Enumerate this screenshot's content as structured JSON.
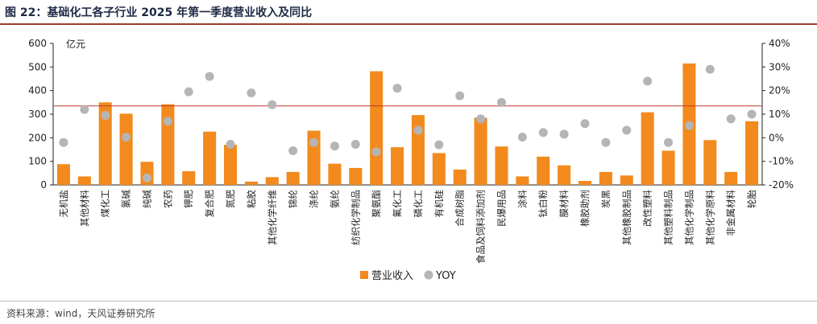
{
  "title": "图 22：基础化工各子行业 2025 年第一季度营业收入及同比",
  "source": "资料来源：wind，天风证券研究所",
  "chart_data": {
    "type": "bar+scatter",
    "unit_label": "亿元",
    "categories": [
      "无机盐",
      "其他材料",
      "煤化工",
      "氯碱",
      "纯碱",
      "农药",
      "钾肥",
      "复合肥",
      "氮肥",
      "粘胶",
      "其他化学纤维",
      "锦纶",
      "涤纶",
      "氨纶",
      "纺织化学制品",
      "聚氨酯",
      "氟化工",
      "磷化工",
      "有机硅",
      "合成树脂",
      "食品及饲料添加剂",
      "民爆用品",
      "涂料",
      "钛白粉",
      "膜材料",
      "橡胶助剂",
      "炭黑",
      "其他橡胶制品",
      "改性塑料",
      "其他塑料制品",
      "其他化学制品",
      "其他化学原料",
      "非金属材料",
      "轮胎"
    ],
    "series": [
      {
        "name": "营业收入",
        "axis": "left",
        "color": "#f28a1e",
        "values": [
          88,
          36,
          350,
          302,
          98,
          342,
          58,
          226,
          170,
          14,
          33,
          55,
          230,
          90,
          72,
          482,
          160,
          296,
          135,
          65,
          285,
          163,
          36,
          120,
          83,
          17,
          55,
          40,
          308,
          145,
          515,
          190,
          55,
          270
        ]
      },
      {
        "name": "YOY",
        "axis": "right",
        "color": "#b5b5b5",
        "values": [
          -2,
          12,
          9.5,
          0.2,
          -17,
          7,
          19.5,
          26,
          -2.8,
          19,
          14,
          -5.5,
          -2,
          -3.5,
          -2.8,
          -6,
          21,
          3.2,
          -3,
          17.8,
          8,
          15,
          0.3,
          2.2,
          1.5,
          6,
          -2,
          3.2,
          24,
          -2,
          5.2,
          29,
          8,
          10
        ]
      }
    ],
    "left_axis": {
      "min": 0,
      "max": 600,
      "ticks": [
        0,
        100,
        200,
        300,
        400,
        500,
        600
      ]
    },
    "right_axis": {
      "min": -20,
      "max": 40,
      "ticks": [
        "-20%",
        "-10%",
        "0%",
        "10%",
        "20%",
        "30%",
        "40%"
      ]
    },
    "reference_line": {
      "value": 335,
      "color": "#c0392b"
    },
    "legend": {
      "position": "bottom-center"
    }
  }
}
